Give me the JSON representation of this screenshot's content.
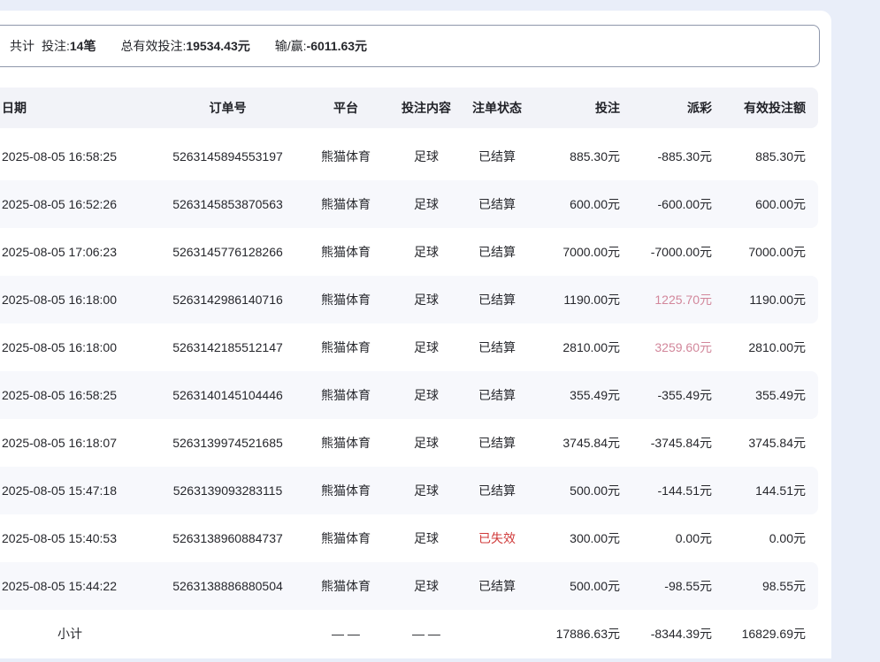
{
  "summary": {
    "prefix": "共计",
    "items": [
      {
        "label": "投注:",
        "value": "14笔"
      },
      {
        "label": "总有效投注:",
        "value": "19534.43元"
      },
      {
        "label": "输/赢:",
        "value": "-6011.63元"
      }
    ]
  },
  "table": {
    "columns": [
      "日期",
      "订单号",
      "平台",
      "投注内容",
      "注单状态",
      "投注",
      "派彩",
      "有效投注额"
    ],
    "rows": [
      {
        "date": "2025-08-05 16:58:25",
        "order": "5263145894553197",
        "platform": "熊猫体育",
        "content": "足球",
        "status": "已结算",
        "status_type": "settled",
        "bet": "885.30元",
        "payout": "-885.30元",
        "payout_type": "negative",
        "valid": "885.30元"
      },
      {
        "date": "2025-08-05 16:52:26",
        "order": "5263145853870563",
        "platform": "熊猫体育",
        "content": "足球",
        "status": "已结算",
        "status_type": "settled",
        "bet": "600.00元",
        "payout": "-600.00元",
        "payout_type": "negative",
        "valid": "600.00元"
      },
      {
        "date": "2025-08-05 17:06:23",
        "order": "5263145776128266",
        "platform": "熊猫体育",
        "content": "足球",
        "status": "已结算",
        "status_type": "settled",
        "bet": "7000.00元",
        "payout": "-7000.00元",
        "payout_type": "negative",
        "valid": "7000.00元"
      },
      {
        "date": "2025-08-05 16:18:00",
        "order": "5263142986140716",
        "platform": "熊猫体育",
        "content": "足球",
        "status": "已结算",
        "status_type": "settled",
        "bet": "1190.00元",
        "payout": "1225.70元",
        "payout_type": "positive",
        "valid": "1190.00元"
      },
      {
        "date": "2025-08-05 16:18:00",
        "order": "5263142185512147",
        "platform": "熊猫体育",
        "content": "足球",
        "status": "已结算",
        "status_type": "settled",
        "bet": "2810.00元",
        "payout": "3259.60元",
        "payout_type": "positive",
        "valid": "2810.00元"
      },
      {
        "date": "2025-08-05 16:58:25",
        "order": "5263140145104446",
        "platform": "熊猫体育",
        "content": "足球",
        "status": "已结算",
        "status_type": "settled",
        "bet": "355.49元",
        "payout": "-355.49元",
        "payout_type": "negative",
        "valid": "355.49元"
      },
      {
        "date": "2025-08-05 16:18:07",
        "order": "5263139974521685",
        "platform": "熊猫体育",
        "content": "足球",
        "status": "已结算",
        "status_type": "settled",
        "bet": "3745.84元",
        "payout": "-3745.84元",
        "payout_type": "negative",
        "valid": "3745.84元"
      },
      {
        "date": "2025-08-05 15:47:18",
        "order": "5263139093283115",
        "platform": "熊猫体育",
        "content": "足球",
        "status": "已结算",
        "status_type": "settled",
        "bet": "500.00元",
        "payout": "-144.51元",
        "payout_type": "negative",
        "valid": "144.51元"
      },
      {
        "date": "2025-08-05 15:40:53",
        "order": "5263138960884737",
        "platform": "熊猫体育",
        "content": "足球",
        "status": "已失效",
        "status_type": "invalid",
        "bet": "300.00元",
        "payout": "0.00元",
        "payout_type": "zero",
        "valid": "0.00元"
      },
      {
        "date": "2025-08-05 15:44:22",
        "order": "5263138886880504",
        "platform": "熊猫体育",
        "content": "足球",
        "status": "已结算",
        "status_type": "settled",
        "bet": "500.00元",
        "payout": "-98.55元",
        "payout_type": "negative",
        "valid": "98.55元"
      }
    ],
    "footer": {
      "label": "小计",
      "platform_dash": "— —",
      "content_dash": "— —",
      "bet": "17886.63元",
      "payout": "-8344.39元",
      "valid": "16829.69元"
    }
  },
  "colors": {
    "page_background": "#e9eef9",
    "card_background": "#ffffff",
    "header_background": "#f2f3f8",
    "alt_row_background": "#f7f8fc",
    "text": "#26272c",
    "summary_border": "#8e97ab",
    "status_invalid_red": "#d03a3a",
    "payout_positive_pink": "#d2879b"
  }
}
